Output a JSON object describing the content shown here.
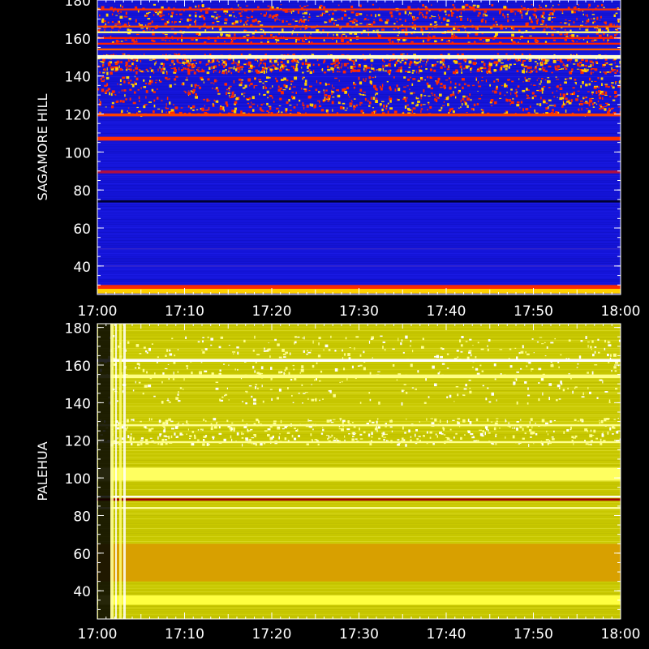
{
  "chart_data": [
    {
      "type": "heatmap",
      "ylabel": "SAGAMORE  HILL",
      "colormap": "blue-red-yellow",
      "ylim": [
        25,
        180
      ],
      "y_ticks": [
        40,
        60,
        80,
        100,
        120,
        140,
        160,
        180
      ],
      "x_ticks": [
        "17:00",
        "17:10",
        "17:20",
        "17:30",
        "17:40",
        "17:50",
        "18:00"
      ],
      "xlim": [
        "17:00",
        "18:00"
      ],
      "base_color": "#1414d8",
      "bands": [
        {
          "y": 27,
          "h": 3,
          "color": "#ffd000"
        },
        {
          "y": 29,
          "h": 2,
          "color": "#ff2a00"
        },
        {
          "y": 40,
          "h": 0.6,
          "color": "#3a28c8"
        },
        {
          "y": 49,
          "h": 0.5,
          "color": "#3a28c8"
        },
        {
          "y": 74,
          "h": 1.2,
          "color": "#000030"
        },
        {
          "y": 89.5,
          "h": 1.5,
          "color": "#b01040"
        },
        {
          "y": 107,
          "h": 2,
          "color": "#ff3000"
        },
        {
          "y": 119.5,
          "h": 1.5,
          "color": "#ff4000"
        },
        {
          "y": 150,
          "h": 2,
          "color": "#ffffd0"
        },
        {
          "y": 154,
          "h": 1,
          "color": "#ff6000"
        },
        {
          "y": 157,
          "h": 1,
          "color": "#ff2000"
        },
        {
          "y": 160,
          "h": 1,
          "color": "#ff2000"
        },
        {
          "y": 163,
          "h": 1,
          "color": "#ffff80"
        },
        {
          "y": 166,
          "h": 1,
          "color": "#ff5000"
        },
        {
          "y": 175,
          "h": 1,
          "color": "#ff3000"
        }
      ],
      "speckle_ranges": [
        [
          120,
          140
        ],
        [
          142,
          152
        ],
        [
          158,
          178
        ]
      ]
    },
    {
      "type": "heatmap",
      "ylabel": "PALEHUA",
      "colormap": "blue-red-yellow",
      "ylim": [
        25,
        182
      ],
      "y_ticks": [
        40,
        60,
        80,
        100,
        120,
        140,
        160,
        180
      ],
      "x_ticks": [
        "17:00",
        "17:10",
        "17:20",
        "17:30",
        "17:40",
        "17:50",
        "18:00"
      ],
      "xlim": [
        "17:00",
        "18:00"
      ],
      "base_color": "#c8c800",
      "bands": [
        {
          "y": 35,
          "h": 5,
          "color": "#ffff40"
        },
        {
          "y": 55,
          "h": 20,
          "color": "#d8a000"
        },
        {
          "y": 84,
          "h": 1,
          "color": "#ffffa0"
        },
        {
          "y": 88.5,
          "h": 1.2,
          "color": "#a00000"
        },
        {
          "y": 90,
          "h": 1,
          "color": "#ffffff"
        },
        {
          "y": 102,
          "h": 7,
          "color": "#ffff60"
        },
        {
          "y": 119,
          "h": 1,
          "color": "#ffff90"
        },
        {
          "y": 128,
          "h": 1,
          "color": "#ffff90"
        },
        {
          "y": 154,
          "h": 2,
          "color": "#ffff80"
        },
        {
          "y": 162.5,
          "h": 1.5,
          "color": "#ffffff"
        }
      ],
      "speckle_ranges": [
        [
          118,
          132
        ],
        [
          140,
          176
        ]
      ]
    }
  ]
}
